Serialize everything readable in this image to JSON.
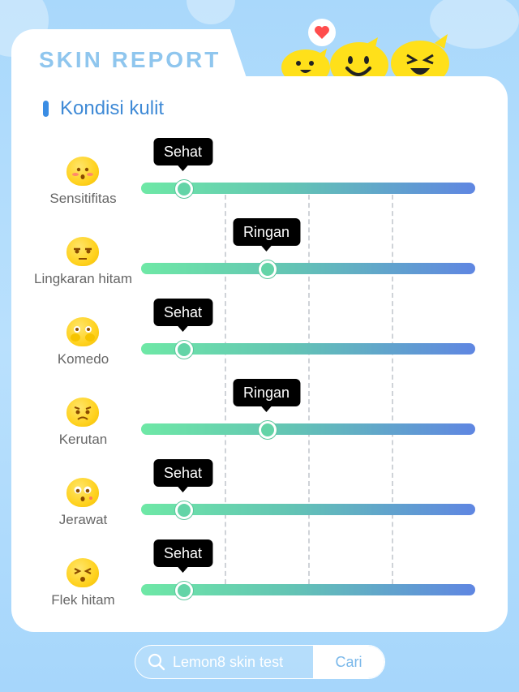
{
  "header": {
    "title": "SKIN REPORT"
  },
  "section": {
    "title": "Kondisi kulit"
  },
  "rows": [
    {
      "label": "Sensitifitas",
      "level": "Sehat",
      "value": 0.125,
      "icon": "blushing-emoji-icon"
    },
    {
      "label": "Lingkaran hitam",
      "level": "Ringan",
      "value": 0.375,
      "icon": "tired-eyes-emoji-icon"
    },
    {
      "label": "Komedo",
      "level": "Sehat",
      "value": 0.125,
      "icon": "covering-face-emoji-icon"
    },
    {
      "label": "Kerutan",
      "level": "Ringan",
      "value": 0.375,
      "icon": "worried-emoji-icon"
    },
    {
      "label": "Jerawat",
      "level": "Sehat",
      "value": 0.125,
      "icon": "surprised-emoji-icon"
    },
    {
      "label": "Flek hitam",
      "level": "Sehat",
      "value": 0.125,
      "icon": "squinting-emoji-icon"
    }
  ],
  "search": {
    "text": "Lemon8 skin test",
    "button": "Cari",
    "icon": "search-icon"
  },
  "colors": {
    "accent": "#3f8ad6",
    "track_start": "#6ee8a6",
    "track_end": "#5f86e2",
    "emoji": "#ffd21f"
  }
}
